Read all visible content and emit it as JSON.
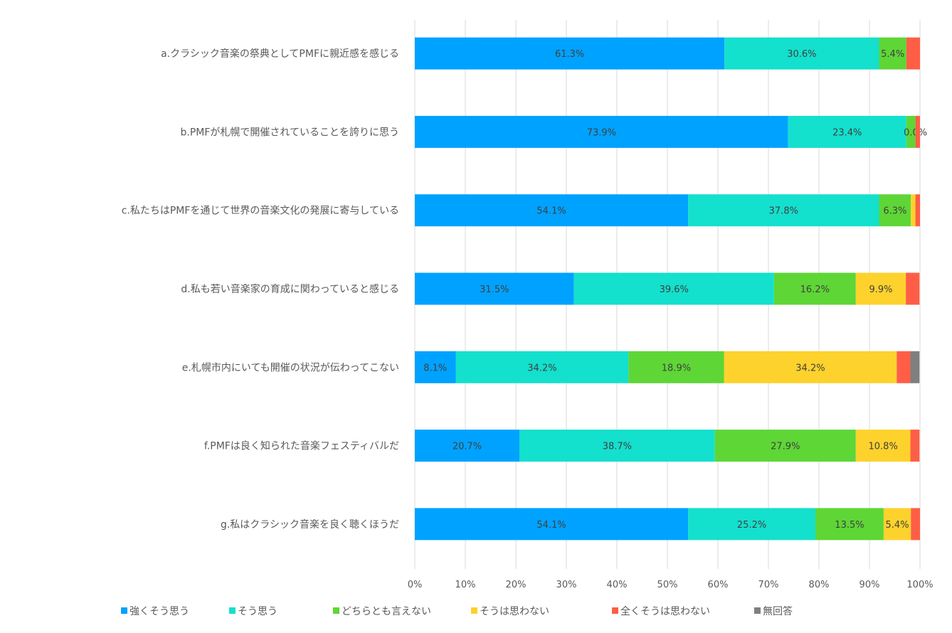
{
  "chart_data": {
    "type": "bar",
    "orientation": "horizontal",
    "stacked": true,
    "title": "",
    "xlabel": "",
    "ylabel": "",
    "xlim": [
      0,
      100
    ],
    "x_ticks": [
      "0%",
      "10%",
      "20%",
      "30%",
      "40%",
      "50%",
      "60%",
      "70%",
      "80%",
      "90%",
      "100%"
    ],
    "grid": true,
    "legend_position": "bottom",
    "categories": [
      "a.クラシック音楽の祭典としてPMFに親近感を感じる",
      "b.PMFが札幌で開催されていることを誇りに思う",
      "c.私たちはPMFを通じて世界の音楽文化の発展に寄与している",
      "d.私も若い音楽家の育成に関わっていると感じる",
      "e.札幌市内にいても開催の状況が伝わってこない",
      "f.PMFは良く知られた音楽フェスティバルだ",
      "g.私はクラシック音楽を良く聴くほうだ"
    ],
    "series": [
      {
        "name": "強くそう思う",
        "color": "#00A2FF",
        "values": [
          61.3,
          73.9,
          54.1,
          31.5,
          8.1,
          20.7,
          54.1
        ],
        "labels": [
          "61.3%",
          "73.9%",
          "54.1%",
          "31.5%",
          "8.1%",
          "20.7%",
          "54.1%"
        ]
      },
      {
        "name": "そう思う",
        "color": "#13E0CD",
        "values": [
          30.6,
          23.4,
          37.8,
          39.6,
          34.2,
          38.7,
          25.2
        ],
        "labels": [
          "30.6%",
          "23.4%",
          "37.8%",
          "39.6%",
          "34.2%",
          "38.7%",
          "25.2%"
        ]
      },
      {
        "name": "どちらとも言えない",
        "color": "#5ED636",
        "values": [
          5.4,
          1.8,
          6.3,
          16.2,
          18.9,
          27.9,
          13.5
        ],
        "labels": [
          "5.4%",
          null,
          "6.3%",
          "16.2%",
          "18.9%",
          "27.9%",
          "13.5%"
        ]
      },
      {
        "name": "そうは思わない",
        "color": "#FDD22C",
        "values": [
          0,
          0.0,
          0.9,
          9.9,
          34.2,
          10.8,
          5.4
        ],
        "labels": [
          null,
          "0.0%",
          null,
          "9.9%",
          "34.2%",
          "10.8%",
          "5.4%"
        ]
      },
      {
        "name": "全くそうは思わない",
        "color": "#FF5E46",
        "values": [
          2.7,
          0.9,
          0.9,
          2.7,
          2.7,
          1.8,
          1.8
        ],
        "labels": [
          null,
          null,
          null,
          null,
          null,
          null,
          null
        ]
      },
      {
        "name": "無回答",
        "color": "#7F7F7F",
        "values": [
          0,
          0,
          0,
          0,
          1.8,
          0,
          0
        ],
        "labels": [
          null,
          null,
          null,
          null,
          null,
          null,
          null
        ]
      }
    ]
  }
}
